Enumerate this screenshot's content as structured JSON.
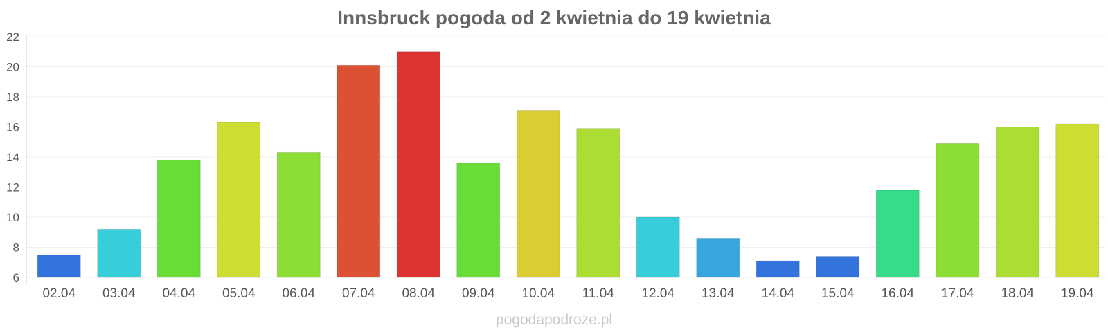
{
  "chart_data": {
    "type": "bar",
    "title": "Innsbruck pogoda od 2 kwietnia do 19 kwietnia",
    "xlabel": "",
    "ylabel": "",
    "ylim": [
      6,
      22
    ],
    "yticks": [
      6,
      8,
      10,
      12,
      14,
      16,
      18,
      20,
      22
    ],
    "grid": true,
    "legend": "none",
    "categories": [
      "02.04",
      "03.04",
      "04.04",
      "05.04",
      "06.04",
      "07.04",
      "08.04",
      "09.04",
      "10.04",
      "11.04",
      "12.04",
      "13.04",
      "14.04",
      "15.04",
      "16.04",
      "17.04",
      "18.04",
      "19.04"
    ],
    "values": [
      7.5,
      9.2,
      13.8,
      16.3,
      14.3,
      20.1,
      21.0,
      13.6,
      17.1,
      15.9,
      10.0,
      8.6,
      7.1,
      7.4,
      11.8,
      14.9,
      16.0,
      16.2
    ],
    "colors": [
      "#3374dc",
      "#36ced9",
      "#69dd37",
      "#cddd33",
      "#8cdd34",
      "#dc5133",
      "#dc3333",
      "#69dd37",
      "#dccc33",
      "#acdd33",
      "#36ced9",
      "#36a6dc",
      "#3374dc",
      "#3374dc",
      "#36dc8a",
      "#8cdd34",
      "#acdd33",
      "#cddd33"
    ]
  },
  "watermark": "pogodapodroze.pl"
}
